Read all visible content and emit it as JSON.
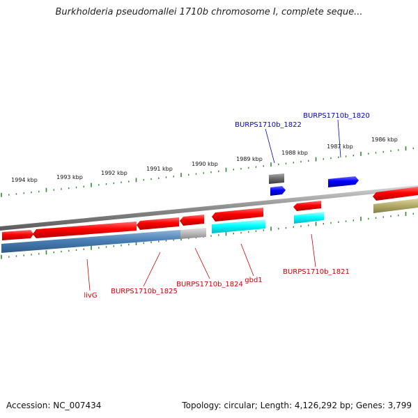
{
  "title": "Burkholderia pseudomallei 1710b chromosome I, complete seque...",
  "footer": {
    "accession": "Accession: NC_007434",
    "stats": "Topology: circular; Length: 4,126,292 bp; Genes: 3,799"
  },
  "colors": {
    "backbone": "#8c8c8c",
    "ticks": "#2e8b2e",
    "gene_forward": "#ff0000",
    "gene_blue": "#0000ff",
    "gene_gray": "#707070",
    "gene_cyan": "#00ffff",
    "cds_steelblue": "#4a7fb5",
    "cds_lightgray": "#b8b8b8",
    "cds_olive": "#b5ad6a",
    "label_red": "#cc0000",
    "label_blue": "#0000cc"
  },
  "scale_labels": [
    "1994 kbp",
    "1993 kbp",
    "1992 kbp",
    "1991 kbp",
    "1990 kbp",
    "1989 kbp",
    "1988 kbp",
    "1987 kbp",
    "1986 kbp"
  ],
  "gene_labels": {
    "top": [
      "BURPS1710b_1822",
      "BURPS1710b_1820"
    ],
    "bottom": [
      "livG",
      "BURPS1710b_1825",
      "BURPS1710b_1824",
      "gbd1",
      "BURPS1710b_1821"
    ]
  }
}
